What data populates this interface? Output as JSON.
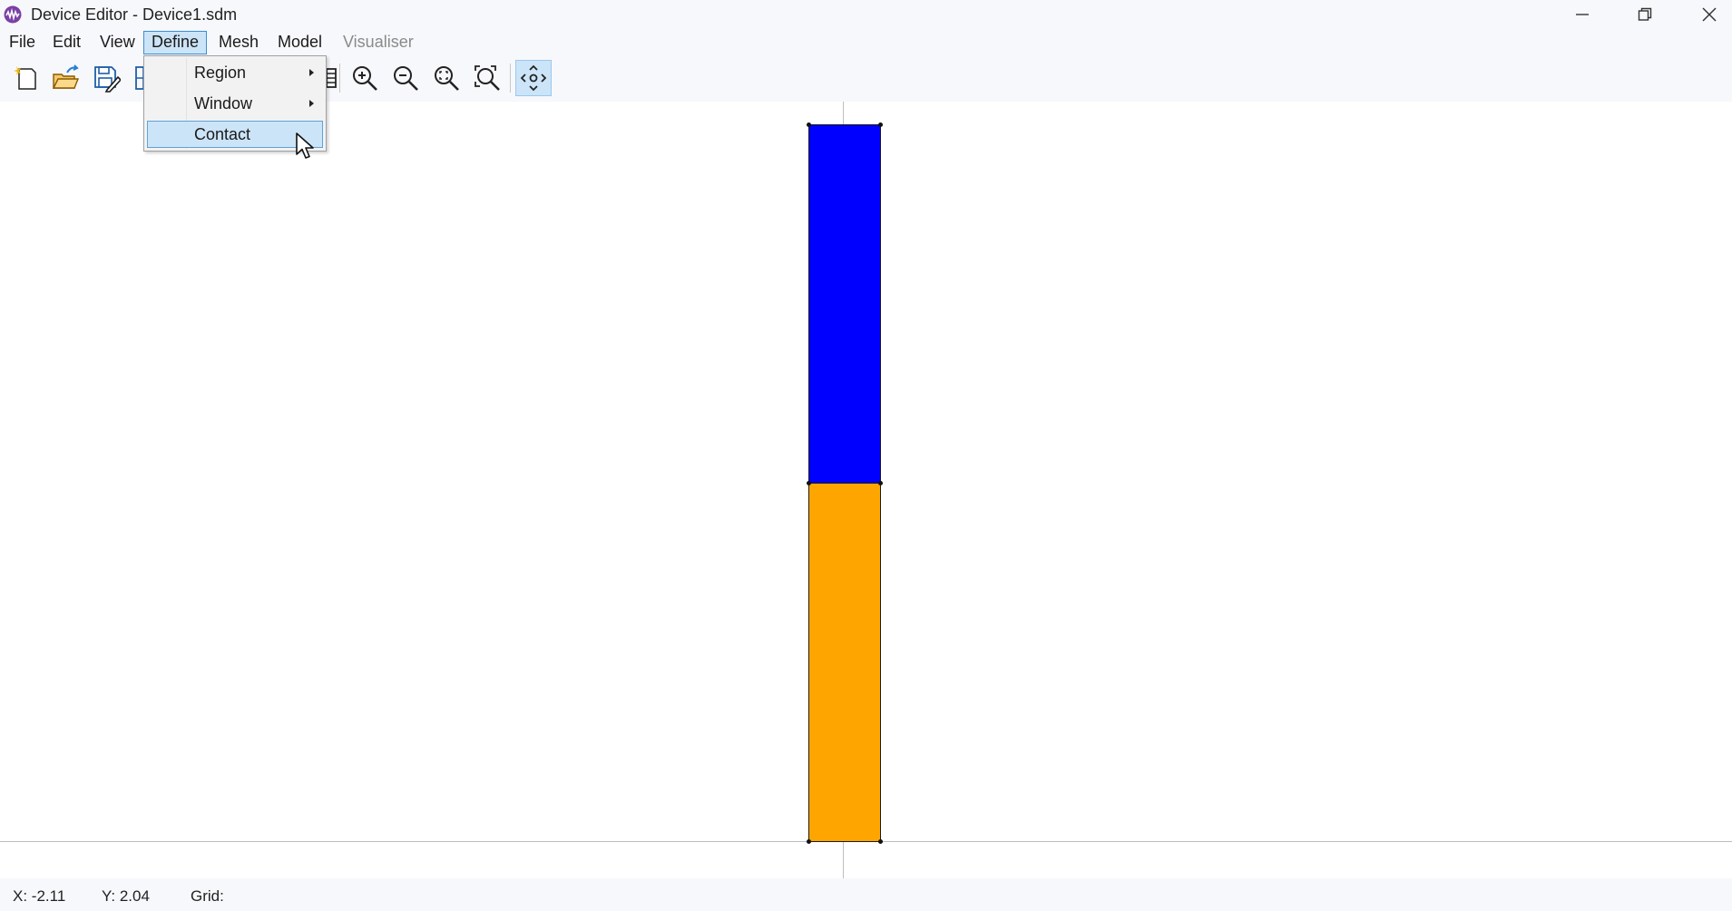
{
  "window": {
    "title": "Device Editor - Device1.sdm",
    "app_icon": "waveform-app-icon",
    "controls": [
      "minimize-icon",
      "restore-icon",
      "close-icon"
    ]
  },
  "menubar": {
    "file": "File",
    "edit": "Edit",
    "view": "View",
    "define": "Define",
    "mesh": "Mesh",
    "model": "Model",
    "visualiser": "Visualiser"
  },
  "define_menu": {
    "region": "Region",
    "window": "Window",
    "contact": "Contact"
  },
  "toolbar": {
    "icons": [
      "new-file-icon",
      "open-folder-icon",
      "save-edit-icon",
      "grid-icon",
      "list-icon",
      "zoom-in-icon",
      "zoom-out-icon",
      "zoom-fit-icon",
      "zoom-extents-icon",
      "pan-icon"
    ],
    "pressed": "pan-icon"
  },
  "canvas": {
    "regions": [
      {
        "name": "region-top",
        "color": "#0000ff"
      },
      {
        "name": "region-bottom",
        "color": "#ffa500"
      }
    ]
  },
  "statusbar": {
    "x": "X: -2.11",
    "y": "Y: 2.04",
    "grid": "Grid:"
  }
}
